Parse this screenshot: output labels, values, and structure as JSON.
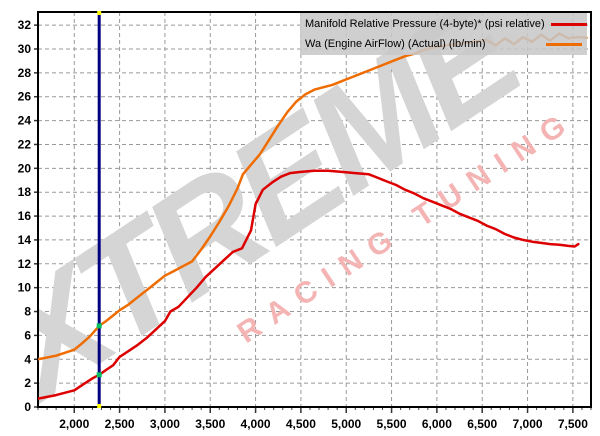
{
  "chart_data": {
    "type": "line",
    "title": "",
    "xlabel": "",
    "ylabel": "",
    "grid": true,
    "xlim": [
      1600,
      7700
    ],
    "ylim": [
      0,
      33.1
    ],
    "x_ticks": [
      {
        "value": 2000,
        "label": "2,000"
      },
      {
        "value": 2500,
        "label": "2,500"
      },
      {
        "value": 3000,
        "label": "3,000"
      },
      {
        "value": 3500,
        "label": "3,500"
      },
      {
        "value": 4000,
        "label": "4,000"
      },
      {
        "value": 4500,
        "label": "4,500"
      },
      {
        "value": 5000,
        "label": "5,000"
      },
      {
        "value": 5500,
        "label": "5,500"
      },
      {
        "value": 6000,
        "label": "6,000"
      },
      {
        "value": 6500,
        "label": "6,500"
      },
      {
        "value": 7000,
        "label": "7,000"
      },
      {
        "value": 7500,
        "label": "7,500"
      }
    ],
    "x_minor_tick_step": 100,
    "y_ticks": [
      {
        "value": 0,
        "label": "0"
      },
      {
        "value": 2,
        "label": "2"
      },
      {
        "value": 4,
        "label": "4"
      },
      {
        "value": 6,
        "label": "6"
      },
      {
        "value": 8,
        "label": "8"
      },
      {
        "value": 10,
        "label": "10"
      },
      {
        "value": 12,
        "label": "12"
      },
      {
        "value": 14,
        "label": "14"
      },
      {
        "value": 16,
        "label": "16"
      },
      {
        "value": 18,
        "label": "18"
      },
      {
        "value": 20,
        "label": "20"
      },
      {
        "value": 22,
        "label": "22"
      },
      {
        "value": 24,
        "label": "24"
      },
      {
        "value": 26,
        "label": "26"
      },
      {
        "value": 28,
        "label": "28"
      },
      {
        "value": 30,
        "label": "30"
      },
      {
        "value": 32,
        "label": "32"
      }
    ],
    "series": [
      {
        "name": "Manifold Relative Pressure (4-byte)* (psi relative)",
        "color": "#dd0000",
        "points": [
          [
            1600,
            0.7
          ],
          [
            1700,
            0.85
          ],
          [
            1800,
            1.0
          ],
          [
            1900,
            1.2
          ],
          [
            2000,
            1.4
          ],
          [
            2100,
            1.9
          ],
          [
            2200,
            2.4
          ],
          [
            2275,
            2.7
          ],
          [
            2350,
            3.1
          ],
          [
            2430,
            3.5
          ],
          [
            2500,
            4.2
          ],
          [
            2600,
            4.7
          ],
          [
            2700,
            5.2
          ],
          [
            2800,
            5.8
          ],
          [
            2900,
            6.5
          ],
          [
            3000,
            7.2
          ],
          [
            3060,
            8.0
          ],
          [
            3150,
            8.4
          ],
          [
            3250,
            9.2
          ],
          [
            3350,
            10.0
          ],
          [
            3450,
            10.9
          ],
          [
            3550,
            11.6
          ],
          [
            3650,
            12.3
          ],
          [
            3750,
            13.0
          ],
          [
            3850,
            13.3
          ],
          [
            3950,
            14.8
          ],
          [
            4000,
            17.0
          ],
          [
            4080,
            18.2
          ],
          [
            4180,
            18.8
          ],
          [
            4280,
            19.3
          ],
          [
            4380,
            19.6
          ],
          [
            4500,
            19.7
          ],
          [
            4650,
            19.8
          ],
          [
            4800,
            19.8
          ],
          [
            4950,
            19.7
          ],
          [
            5100,
            19.6
          ],
          [
            5250,
            19.5
          ],
          [
            5350,
            19.2
          ],
          [
            5450,
            18.9
          ],
          [
            5550,
            18.6
          ],
          [
            5650,
            18.2
          ],
          [
            5750,
            17.9
          ],
          [
            5850,
            17.5
          ],
          [
            5950,
            17.2
          ],
          [
            6050,
            16.9
          ],
          [
            6150,
            16.6
          ],
          [
            6250,
            16.2
          ],
          [
            6350,
            15.9
          ],
          [
            6450,
            15.6
          ],
          [
            6550,
            15.2
          ],
          [
            6650,
            14.9
          ],
          [
            6750,
            14.5
          ],
          [
            6850,
            14.2
          ],
          [
            6950,
            14.0
          ],
          [
            7050,
            13.85
          ],
          [
            7150,
            13.75
          ],
          [
            7250,
            13.65
          ],
          [
            7350,
            13.6
          ],
          [
            7450,
            13.5
          ],
          [
            7520,
            13.45
          ],
          [
            7560,
            13.65
          ]
        ]
      },
      {
        "name": "Wa (Engine AirFlow) (Actual) (lb/min)",
        "color": "#ee6c00",
        "points": [
          [
            1600,
            4.0
          ],
          [
            1700,
            4.15
          ],
          [
            1800,
            4.3
          ],
          [
            1900,
            4.55
          ],
          [
            2000,
            4.8
          ],
          [
            2080,
            5.3
          ],
          [
            2170,
            5.9
          ],
          [
            2275,
            6.8
          ],
          [
            2350,
            7.2
          ],
          [
            2450,
            7.8
          ],
          [
            2500,
            8.1
          ],
          [
            2600,
            8.6
          ],
          [
            2700,
            9.2
          ],
          [
            2800,
            9.8
          ],
          [
            2900,
            10.4
          ],
          [
            3000,
            11.0
          ],
          [
            3100,
            11.4
          ],
          [
            3200,
            11.8
          ],
          [
            3300,
            12.2
          ],
          [
            3400,
            13.2
          ],
          [
            3500,
            14.3
          ],
          [
            3600,
            15.5
          ],
          [
            3700,
            16.8
          ],
          [
            3800,
            18.3
          ],
          [
            3860,
            19.5
          ],
          [
            3950,
            20.3
          ],
          [
            4050,
            21.2
          ],
          [
            4150,
            22.4
          ],
          [
            4250,
            23.6
          ],
          [
            4350,
            24.7
          ],
          [
            4450,
            25.6
          ],
          [
            4550,
            26.2
          ],
          [
            4650,
            26.6
          ],
          [
            4750,
            26.8
          ],
          [
            4850,
            27.0
          ],
          [
            4950,
            27.3
          ],
          [
            5050,
            27.6
          ],
          [
            5150,
            27.9
          ],
          [
            5250,
            28.2
          ],
          [
            5350,
            28.5
          ],
          [
            5450,
            28.8
          ],
          [
            5550,
            29.1
          ],
          [
            5650,
            29.4
          ],
          [
            5750,
            29.6
          ],
          [
            5850,
            29.9
          ],
          [
            5950,
            30.1
          ],
          [
            6100,
            30.3
          ],
          [
            6250,
            30.45
          ],
          [
            6400,
            30.6
          ],
          [
            6550,
            30.75
          ],
          [
            6650,
            30.3
          ],
          [
            6750,
            30.9
          ],
          [
            6850,
            30.4
          ],
          [
            6950,
            31.0
          ],
          [
            7050,
            30.6
          ],
          [
            7150,
            31.2
          ],
          [
            7250,
            30.7
          ],
          [
            7350,
            31.3
          ],
          [
            7450,
            30.9
          ],
          [
            7550,
            31.0
          ],
          [
            7650,
            30.95
          ]
        ]
      }
    ],
    "cursor": {
      "x": 2275,
      "color": "#000080",
      "end_marker_color": "#ffff00",
      "intersect_marker_color": "#00c060"
    },
    "legend_position": "top-right"
  },
  "legend": {
    "items": [
      {
        "label": "Manifold Relative Pressure (4-byte)* (psi relative)",
        "color": "#dd0000"
      },
      {
        "label": "Wa (Engine AirFlow) (Actual) (lb/min)",
        "color": "#ee6c00"
      }
    ]
  },
  "watermark": {
    "line1": "XTREME",
    "line2": "RACING TUNING",
    "line1_color": "#d5d5d5",
    "line2_color": "#f4b4b4"
  },
  "colors": {
    "grid": "#999999",
    "axis": "#000000",
    "tick_label": "#000000",
    "background": "#ffffff"
  }
}
